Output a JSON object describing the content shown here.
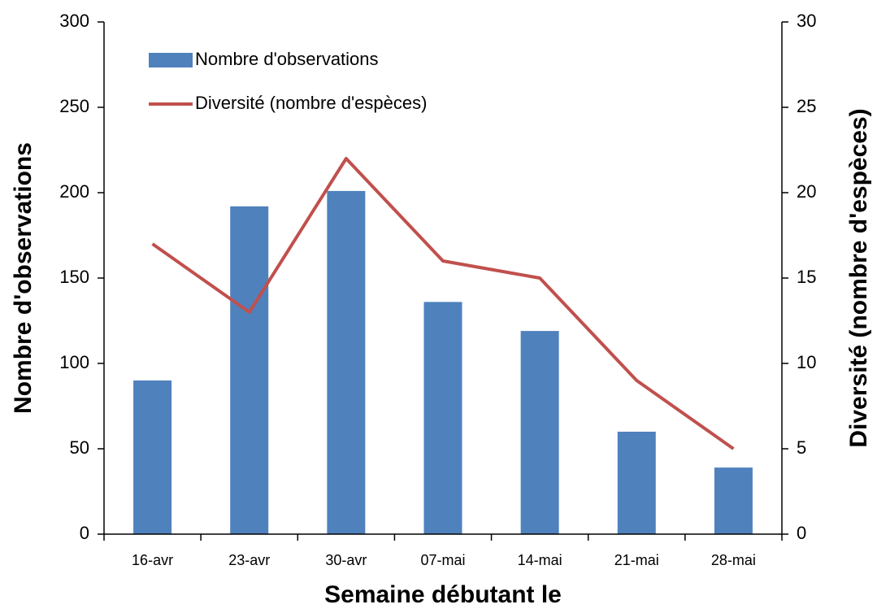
{
  "chart_data": {
    "type": "bar",
    "xlabel": "Semaine débutant le",
    "ylabel": "Nombre d'observations",
    "y2label": "Diversité (nombre d'espèces)",
    "categories": [
      "16-avr",
      "23-avr",
      "30-avr",
      "07-mai",
      "14-mai",
      "21-mai",
      "28-mai"
    ],
    "series": [
      {
        "name": "Nombre d'observations",
        "type": "bar",
        "color": "#4f81bd",
        "values": [
          90,
          192,
          201,
          136,
          119,
          60,
          39
        ]
      },
      {
        "name": "Diversité (nombre d'espèces)",
        "type": "line",
        "axis": "y2",
        "color": "#c0504d",
        "values": [
          17,
          13,
          22,
          16,
          15,
          9,
          5
        ]
      }
    ],
    "ylim": [
      0,
      300
    ],
    "yticks": [
      0,
      50,
      100,
      150,
      200,
      250,
      300
    ],
    "y2lim": [
      0,
      30
    ],
    "y2ticks": [
      0,
      5,
      10,
      15,
      20,
      25,
      30
    ],
    "grid": false,
    "legend": "upper left"
  }
}
